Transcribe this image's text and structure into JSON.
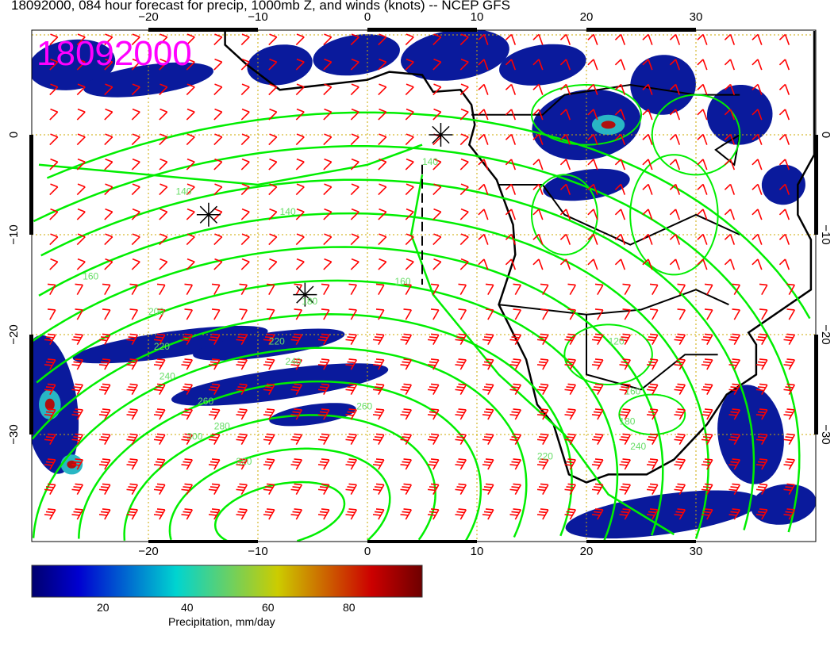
{
  "title": "18092000, 084 hour forecast for precip, 1000mb Z, and winds (knots) -- NCEP GFS",
  "stamp": "18092000",
  "map": {
    "lon_range": [
      -30.6,
      40.9
    ],
    "lat_range": [
      -40.7,
      10.5
    ],
    "lon_ticks": [
      -20,
      -10,
      0,
      10,
      20,
      30
    ],
    "lat_ticks": [
      0,
      -10,
      -20,
      -30
    ],
    "lon_tick_labels": [
      "−20",
      "−10",
      "0",
      "10",
      "20",
      "30"
    ],
    "lat_tick_labels": [
      "0",
      "−10",
      "−20",
      "−30"
    ],
    "contour_color": "#00ee00",
    "barb_color": "#ff0000",
    "coast_color": "#000000",
    "gridline_color": "#ccaa00",
    "stamp_color": "#ff00ff",
    "contour_labels": [
      {
        "value": "140",
        "lon": -17.5,
        "lat": -6
      },
      {
        "value": "140",
        "lon": -8,
        "lat": -8
      },
      {
        "value": "160",
        "lon": -26,
        "lat": -14.5
      },
      {
        "value": "160",
        "lon": 2.5,
        "lat": -15
      },
      {
        "value": "180",
        "lon": -6,
        "lat": -17
      },
      {
        "value": "200",
        "lon": -20,
        "lat": -18
      },
      {
        "value": "220",
        "lon": -19.5,
        "lat": -21.5
      },
      {
        "value": "240",
        "lon": -19,
        "lat": -24.5
      },
      {
        "value": "260",
        "lon": -15.5,
        "lat": -27
      },
      {
        "value": "280",
        "lon": -14,
        "lat": -29.5
      },
      {
        "value": "300",
        "lon": -16.5,
        "lat": -30.5
      },
      {
        "value": "320",
        "lon": -12,
        "lat": -33
      },
      {
        "value": "220",
        "lon": -9,
        "lat": -21
      },
      {
        "value": "240",
        "lon": -7.5,
        "lat": -23
      },
      {
        "value": "260",
        "lon": -1,
        "lat": -27.5
      },
      {
        "value": "120",
        "lon": 22,
        "lat": -21
      },
      {
        "value": "160",
        "lon": 23.5,
        "lat": -26
      },
      {
        "value": "180",
        "lon": 23,
        "lat": -29
      },
      {
        "value": "240",
        "lon": 24,
        "lat": -31.5
      },
      {
        "value": "220",
        "lon": 15.5,
        "lat": -32.5
      },
      {
        "value": "140",
        "lon": 5,
        "lat": -3
      }
    ],
    "markers": [
      {
        "type": "asterisk",
        "lon": -14.5,
        "lat": -8
      },
      {
        "type": "asterisk",
        "lon": -5.7,
        "lat": -16
      },
      {
        "type": "asterisk",
        "lon": 6.7,
        "lat": 0
      }
    ]
  },
  "colorbar": {
    "title": "Precipitation, mm/day",
    "ticks": [
      "20",
      "40",
      "60",
      "80"
    ],
    "tick_values": [
      20,
      40,
      60,
      80
    ],
    "range": [
      0,
      97
    ],
    "colors": [
      "#00006e",
      "#0000d0",
      "#00d4d0",
      "#cccc00",
      "#cc0000",
      "#6e0000"
    ]
  }
}
